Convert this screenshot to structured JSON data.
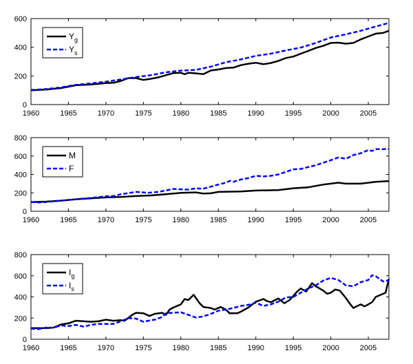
{
  "chart_data": [
    {
      "type": "line",
      "xlim": [
        1960,
        2007.75
      ],
      "ylim": [
        0,
        600
      ],
      "xticks": [
        1960,
        1965,
        1970,
        1975,
        1980,
        1985,
        1990,
        1995,
        2000,
        2005
      ],
      "yticks": [
        0,
        200,
        400,
        600
      ],
      "grid": false,
      "legend_position": "top-left",
      "series": [
        {
          "name": "Y",
          "sub": "g",
          "color": "#000000",
          "style": "solid",
          "x": [
            1960,
            1962,
            1964,
            1966,
            1968,
            1970,
            1971,
            1972,
            1973,
            1974,
            1975,
            1976,
            1977,
            1978,
            1979,
            1980,
            1980.5,
            1981,
            1982,
            1983,
            1984,
            1985,
            1986,
            1987,
            1988,
            1989,
            1990,
            1991,
            1992,
            1993,
            1994,
            1995,
            1996,
            1997,
            1998,
            1999,
            2000,
            2001,
            2002,
            2003,
            2004,
            2005,
            2006,
            2007,
            2007.75
          ],
          "y": [
            100,
            105,
            115,
            135,
            140,
            150,
            152,
            165,
            185,
            185,
            172,
            180,
            190,
            205,
            220,
            222,
            212,
            222,
            218,
            212,
            238,
            245,
            255,
            258,
            275,
            285,
            292,
            282,
            290,
            305,
            325,
            335,
            355,
            375,
            395,
            410,
            430,
            432,
            425,
            430,
            455,
            475,
            495,
            500,
            515
          ]
        },
        {
          "name": "Y",
          "sub": "s",
          "color": "#0000ff",
          "style": "dashed",
          "x": [
            1960,
            1962,
            1964,
            1966,
            1968,
            1970,
            1972,
            1974,
            1976,
            1978,
            1980,
            1982,
            1984,
            1986,
            1988,
            1990,
            1992,
            1994,
            1996,
            1998,
            2000,
            2002,
            2004,
            2006,
            2007.75
          ],
          "y": [
            102,
            108,
            120,
            138,
            148,
            160,
            175,
            192,
            205,
            225,
            237,
            242,
            265,
            295,
            315,
            340,
            355,
            378,
            398,
            430,
            468,
            490,
            515,
            545,
            570
          ]
        }
      ]
    },
    {
      "type": "line",
      "xlim": [
        1960,
        2007.75
      ],
      "ylim": [
        0,
        800
      ],
      "xticks": [
        1960,
        1965,
        1970,
        1975,
        1980,
        1985,
        1990,
        1995,
        2000,
        2005
      ],
      "yticks": [
        0,
        200,
        400,
        600,
        800
      ],
      "grid": false,
      "legend_position": "top-left",
      "series": [
        {
          "name": "M",
          "sub": "",
          "color": "#000000",
          "style": "solid",
          "x": [
            1960,
            1962,
            1964,
            1966,
            1968,
            1970,
            1972,
            1974,
            1976,
            1978,
            1980,
            1982,
            1983,
            1984,
            1985,
            1988,
            1990,
            1993,
            1995,
            1997,
            1999,
            2001,
            2002,
            2004,
            2006,
            2007.75
          ],
          "y": [
            100,
            105,
            115,
            130,
            140,
            150,
            155,
            165,
            172,
            185,
            200,
            205,
            192,
            195,
            210,
            215,
            225,
            230,
            250,
            260,
            290,
            310,
            300,
            300,
            320,
            328
          ]
        },
        {
          "name": "F",
          "sub": "",
          "color": "#0000ff",
          "style": "dashed",
          "x": [
            1960,
            1961,
            1962,
            1964,
            1966,
            1968,
            1970,
            1971,
            1972,
            1974,
            1975,
            1975.5,
            1977,
            1979,
            1981,
            1982,
            1983,
            1985,
            1986,
            1986.5,
            1987,
            1988,
            1989,
            1990,
            1991,
            1992,
            1993,
            1995,
            1996,
            1998,
            2000,
            2001,
            2002,
            2003,
            2004,
            2005,
            2005.5,
            2006,
            2007.75
          ],
          "y": [
            100,
            95,
            100,
            115,
            130,
            145,
            162,
            165,
            185,
            210,
            205,
            200,
            210,
            242,
            235,
            248,
            245,
            290,
            310,
            330,
            320,
            345,
            360,
            385,
            378,
            385,
            400,
            455,
            460,
            500,
            555,
            585,
            570,
            610,
            630,
            665,
            655,
            675,
            675
          ]
        }
      ]
    },
    {
      "type": "line",
      "xlim": [
        1960,
        2007.75
      ],
      "ylim": [
        0,
        800
      ],
      "xticks": [
        1960,
        1965,
        1970,
        1975,
        1980,
        1985,
        1990,
        1995,
        2000,
        2005
      ],
      "yticks": [
        0,
        200,
        400,
        600,
        800
      ],
      "grid": false,
      "legend_position": "top-left",
      "series": [
        {
          "name": "I",
          "sub": "g",
          "color": "#000000",
          "style": "solid",
          "x": [
            1960,
            1962,
            1963,
            1964,
            1965,
            1966,
            1967,
            1968,
            1969,
            1970,
            1971,
            1972,
            1972.5,
            1973.5,
            1974,
            1975,
            1975.8,
            1976.5,
            1977.5,
            1978,
            1978.5,
            1979,
            1980,
            1980.5,
            1981,
            1981.7,
            1982.5,
            1983,
            1984,
            1984.5,
            1985.3,
            1986,
            1986.5,
            1987.5,
            1988,
            1989,
            1990,
            1991,
            1991.5,
            1992,
            1993,
            1993.8,
            1994.5,
            1995.5,
            1996,
            1996.7,
            1997.5,
            1998,
            1999,
            1999.5,
            2000,
            2000.6,
            2001.2,
            2002,
            2002.5,
            2003,
            2004,
            2004.5,
            2005,
            2005.5,
            2006,
            2007,
            2007.3,
            2007.75
          ],
          "y": [
            105,
            105,
            110,
            140,
            150,
            175,
            170,
            165,
            170,
            185,
            175,
            180,
            175,
            230,
            250,
            245,
            220,
            240,
            250,
            230,
            280,
            300,
            330,
            380,
            370,
            420,
            340,
            305,
            295,
            280,
            305,
            280,
            245,
            245,
            260,
            300,
            355,
            380,
            360,
            350,
            385,
            340,
            370,
            450,
            480,
            450,
            530,
            500,
            460,
            430,
            440,
            470,
            460,
            390,
            340,
            295,
            330,
            310,
            330,
            350,
            400,
            430,
            440,
            570
          ]
        },
        {
          "name": "I",
          "sub": "s",
          "color": "#0000ff",
          "style": "dashed",
          "x": [
            1960,
            1961,
            1962,
            1963,
            1964,
            1965,
            1966,
            1967,
            1968,
            1969,
            1970,
            1971,
            1972,
            1973,
            1974,
            1975,
            1976,
            1976.5,
            1977.5,
            1978,
            1980,
            1981,
            1982,
            1983,
            1984,
            1985,
            1986,
            1987,
            1988,
            1989,
            1990,
            1991,
            1992,
            1993,
            1994,
            1995,
            1996,
            1997,
            1998,
            1999,
            2000,
            2001,
            2002,
            2003,
            2004,
            2005,
            2005.5,
            2006,
            2007,
            2007.75
          ],
          "y": [
            100,
            95,
            110,
            110,
            130,
            125,
            135,
            120,
            135,
            145,
            145,
            145,
            170,
            200,
            195,
            165,
            180,
            185,
            210,
            245,
            255,
            230,
            205,
            215,
            240,
            270,
            280,
            295,
            315,
            325,
            345,
            315,
            330,
            355,
            395,
            400,
            440,
            480,
            510,
            555,
            580,
            560,
            510,
            500,
            540,
            560,
            605,
            595,
            545,
            560
          ]
        }
      ]
    }
  ]
}
